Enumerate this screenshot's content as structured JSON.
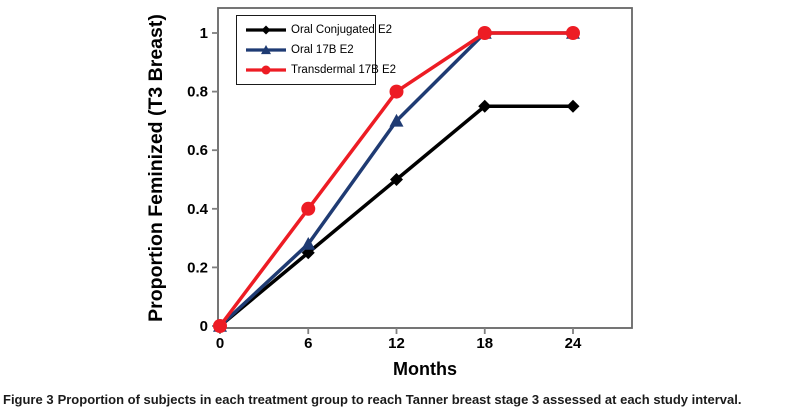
{
  "figure": {
    "caption_prefix": "Figure 3",
    "caption_body": "Proportion of subjects in each treatment group to reach Tanner breast stage 3 assessed at each study interval."
  },
  "chart_data": {
    "type": "line",
    "title": "",
    "xlabel": "Months",
    "ylabel": "Proportion Feminized (T3 Breast)",
    "x": [
      0,
      6,
      12,
      18,
      24
    ],
    "series": [
      {
        "name": "Oral Conjugated E2",
        "color": "#000000",
        "marker": "diamond",
        "values": [
          0,
          0.25,
          0.5,
          0.75,
          0.75
        ]
      },
      {
        "name": "Oral 17B E2",
        "color": "#1f3b73",
        "marker": "triangle",
        "values": [
          0,
          0.28,
          0.7,
          1.0,
          1.0
        ]
      },
      {
        "name": "Transdermal 17B E2",
        "color": "#ed1c24",
        "marker": "circle",
        "values": [
          0,
          0.4,
          0.8,
          1.0,
          1.0
        ]
      }
    ],
    "xticks": [
      {
        "v": 0,
        "label": "0"
      },
      {
        "v": 6,
        "label": "6"
      },
      {
        "v": 12,
        "label": "12"
      },
      {
        "v": 18,
        "label": "18"
      },
      {
        "v": 24,
        "label": "24"
      }
    ],
    "yticks": [
      {
        "v": 0,
        "label": "0"
      },
      {
        "v": 0.2,
        "label": "0.2"
      },
      {
        "v": 0.4,
        "label": "0.4"
      },
      {
        "v": 0.6,
        "label": "0.6"
      },
      {
        "v": 0.8,
        "label": "0.8"
      },
      {
        "v": 1,
        "label": "1"
      }
    ],
    "xlim": [
      0,
      28
    ],
    "ylim": [
      0,
      1.09
    ],
    "grid": false,
    "legend_position": "top-left-inside",
    "axis_color": "#7f7f7f",
    "plot_border_color": "#666666",
    "background_color": "#ffffff"
  }
}
